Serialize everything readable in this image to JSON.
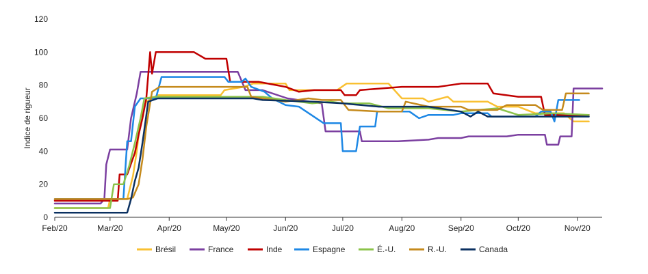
{
  "chart_data": {
    "type": "line",
    "ylabel": "Indice de rigueur",
    "xlabel": "",
    "ylim": [
      0,
      120
    ],
    "yticks": [
      0,
      20,
      40,
      60,
      80,
      100,
      120
    ],
    "xlim": [
      "2020-02-01",
      "2020-11-14"
    ],
    "xticks": [
      {
        "date": "2020-02-01",
        "label": "Feb/20"
      },
      {
        "date": "2020-03-01",
        "label": "Mar/20"
      },
      {
        "date": "2020-04-01",
        "label": "Apr/20"
      },
      {
        "date": "2020-05-01",
        "label": "May/20"
      },
      {
        "date": "2020-06-01",
        "label": "Jun/20"
      },
      {
        "date": "2020-07-01",
        "label": "Jul/20"
      },
      {
        "date": "2020-08-01",
        "label": "Aug/20"
      },
      {
        "date": "2020-09-01",
        "label": "Sep/20"
      },
      {
        "date": "2020-10-01",
        "label": "Oct/20"
      },
      {
        "date": "2020-11-01",
        "label": "Nov/20"
      }
    ],
    "grid": false,
    "legend_position": "bottom",
    "series": [
      {
        "name": "Brésil",
        "color": "#F9C032",
        "points": [
          [
            "2020-02-01",
            5.6
          ],
          [
            "2020-02-29",
            5.6
          ],
          [
            "2020-03-01",
            11
          ],
          [
            "2020-03-10",
            11
          ],
          [
            "2020-03-13",
            25
          ],
          [
            "2020-03-15",
            40
          ],
          [
            "2020-03-17",
            60
          ],
          [
            "2020-03-20",
            70
          ],
          [
            "2020-03-26",
            74
          ],
          [
            "2020-04-10",
            74
          ],
          [
            "2020-04-28",
            74
          ],
          [
            "2020-04-30",
            77
          ],
          [
            "2020-05-10",
            79
          ],
          [
            "2020-05-15",
            81
          ],
          [
            "2020-06-01",
            81
          ],
          [
            "2020-06-03",
            77
          ],
          [
            "2020-06-25",
            77
          ],
          [
            "2020-06-28",
            77
          ],
          [
            "2020-07-03",
            81
          ],
          [
            "2020-07-10",
            81
          ],
          [
            "2020-07-25",
            81
          ],
          [
            "2020-08-01",
            72
          ],
          [
            "2020-08-12",
            72
          ],
          [
            "2020-08-15",
            70
          ],
          [
            "2020-08-25",
            73
          ],
          [
            "2020-08-28",
            70
          ],
          [
            "2020-09-15",
            70
          ],
          [
            "2020-09-20",
            67
          ],
          [
            "2020-10-01",
            67
          ],
          [
            "2020-10-10",
            63
          ],
          [
            "2020-10-25",
            63
          ],
          [
            "2020-10-30",
            58
          ],
          [
            "2020-11-07",
            58
          ]
        ]
      },
      {
        "name": "France",
        "color": "#7B3FA0",
        "points": [
          [
            "2020-02-01",
            8.3
          ],
          [
            "2020-02-25",
            8.3
          ],
          [
            "2020-02-27",
            11
          ],
          [
            "2020-02-28",
            32
          ],
          [
            "2020-03-01",
            41
          ],
          [
            "2020-03-10",
            41
          ],
          [
            "2020-03-12",
            60
          ],
          [
            "2020-03-15",
            75
          ],
          [
            "2020-03-17",
            88
          ],
          [
            "2020-04-20",
            88
          ],
          [
            "2020-05-07",
            88
          ],
          [
            "2020-05-11",
            77
          ],
          [
            "2020-05-20",
            77
          ],
          [
            "2020-06-02",
            72
          ],
          [
            "2020-06-20",
            69
          ],
          [
            "2020-06-22",
            52
          ],
          [
            "2020-07-10",
            52
          ],
          [
            "2020-07-11",
            46
          ],
          [
            "2020-07-30",
            46
          ],
          [
            "2020-08-15",
            47
          ],
          [
            "2020-08-20",
            48
          ],
          [
            "2020-09-01",
            48
          ],
          [
            "2020-09-05",
            49
          ],
          [
            "2020-09-25",
            49
          ],
          [
            "2020-10-01",
            50
          ],
          [
            "2020-10-15",
            50
          ],
          [
            "2020-10-16",
            44
          ],
          [
            "2020-10-22",
            44
          ],
          [
            "2020-10-23",
            49
          ],
          [
            "2020-10-29",
            49
          ],
          [
            "2020-10-30",
            78
          ],
          [
            "2020-11-14",
            78
          ]
        ]
      },
      {
        "name": "Inde",
        "color": "#C00000",
        "points": [
          [
            "2020-02-01",
            10
          ],
          [
            "2020-02-28",
            10
          ],
          [
            "2020-03-05",
            10
          ],
          [
            "2020-03-06",
            26
          ],
          [
            "2020-03-10",
            26
          ],
          [
            "2020-03-14",
            39
          ],
          [
            "2020-03-16",
            50
          ],
          [
            "2020-03-18",
            60
          ],
          [
            "2020-03-20",
            72
          ],
          [
            "2020-03-22",
            100
          ],
          [
            "2020-03-23",
            87
          ],
          [
            "2020-03-25",
            100
          ],
          [
            "2020-04-14",
            100
          ],
          [
            "2020-04-20",
            96
          ],
          [
            "2020-05-01",
            96
          ],
          [
            "2020-05-03",
            82
          ],
          [
            "2020-05-18",
            82
          ],
          [
            "2020-06-01",
            79
          ],
          [
            "2020-06-08",
            76
          ],
          [
            "2020-06-16",
            77
          ],
          [
            "2020-06-30",
            77
          ],
          [
            "2020-07-02",
            74
          ],
          [
            "2020-07-08",
            74
          ],
          [
            "2020-07-10",
            77
          ],
          [
            "2020-08-01",
            79
          ],
          [
            "2020-08-20",
            79
          ],
          [
            "2020-09-01",
            81
          ],
          [
            "2020-09-15",
            81
          ],
          [
            "2020-09-18",
            75
          ],
          [
            "2020-10-01",
            73
          ],
          [
            "2020-10-13",
            73
          ],
          [
            "2020-10-15",
            62
          ],
          [
            "2020-11-07",
            62
          ]
        ]
      },
      {
        "name": "Espagne",
        "color": "#1E88E5",
        "points": [
          [
            "2020-02-01",
            11
          ],
          [
            "2020-03-08",
            11
          ],
          [
            "2020-03-10",
            46
          ],
          [
            "2020-03-12",
            46
          ],
          [
            "2020-03-14",
            67
          ],
          [
            "2020-03-17",
            72
          ],
          [
            "2020-03-25",
            72
          ],
          [
            "2020-03-28",
            85
          ],
          [
            "2020-04-10",
            85
          ],
          [
            "2020-04-30",
            85
          ],
          [
            "2020-05-02",
            82
          ],
          [
            "2020-05-09",
            82
          ],
          [
            "2020-05-11",
            84
          ],
          [
            "2020-05-14",
            79
          ],
          [
            "2020-05-21",
            76
          ],
          [
            "2020-05-25",
            72
          ],
          [
            "2020-06-01",
            68
          ],
          [
            "2020-06-08",
            67
          ],
          [
            "2020-06-21",
            57
          ],
          [
            "2020-06-30",
            57
          ],
          [
            "2020-07-01",
            40
          ],
          [
            "2020-07-08",
            40
          ],
          [
            "2020-07-10",
            55
          ],
          [
            "2020-07-18",
            55
          ],
          [
            "2020-07-19",
            64
          ],
          [
            "2020-08-05",
            64
          ],
          [
            "2020-08-10",
            60
          ],
          [
            "2020-08-15",
            62
          ],
          [
            "2020-08-28",
            62
          ],
          [
            "2020-09-01",
            63
          ],
          [
            "2020-09-15",
            63
          ],
          [
            "2020-09-17",
            61
          ],
          [
            "2020-10-10",
            61
          ],
          [
            "2020-10-13",
            64
          ],
          [
            "2020-10-18",
            64
          ],
          [
            "2020-10-20",
            58
          ],
          [
            "2020-10-22",
            71
          ],
          [
            "2020-11-02",
            71
          ]
        ]
      },
      {
        "name": "É.-U.",
        "color": "#8BC34A",
        "points": [
          [
            "2020-02-01",
            5.6
          ],
          [
            "2020-03-01",
            5.6
          ],
          [
            "2020-03-03",
            20
          ],
          [
            "2020-03-08",
            20
          ],
          [
            "2020-03-11",
            31
          ],
          [
            "2020-03-14",
            45
          ],
          [
            "2020-03-17",
            60
          ],
          [
            "2020-03-19",
            72
          ],
          [
            "2020-03-25",
            73
          ],
          [
            "2020-04-20",
            73
          ],
          [
            "2020-05-20",
            73
          ],
          [
            "2020-06-01",
            71
          ],
          [
            "2020-06-15",
            69
          ],
          [
            "2020-06-25",
            70
          ],
          [
            "2020-07-01",
            69
          ],
          [
            "2020-07-15",
            69
          ],
          [
            "2020-07-25",
            66
          ],
          [
            "2020-08-15",
            66
          ],
          [
            "2020-09-01",
            64
          ],
          [
            "2020-09-20",
            66
          ],
          [
            "2020-10-01",
            62
          ],
          [
            "2020-10-20",
            63
          ],
          [
            "2020-11-07",
            62
          ]
        ]
      },
      {
        "name": "R.-U.",
        "color": "#C58A1C",
        "points": [
          [
            "2020-02-01",
            11
          ],
          [
            "2020-03-10",
            11
          ],
          [
            "2020-03-13",
            12
          ],
          [
            "2020-03-16",
            20
          ],
          [
            "2020-03-18",
            35
          ],
          [
            "2020-03-20",
            55
          ],
          [
            "2020-03-23",
            76
          ],
          [
            "2020-03-27",
            79
          ],
          [
            "2020-04-20",
            79
          ],
          [
            "2020-05-12",
            79
          ],
          [
            "2020-05-14",
            73
          ],
          [
            "2020-06-01",
            70
          ],
          [
            "2020-06-13",
            72
          ],
          [
            "2020-06-20",
            71
          ],
          [
            "2020-06-30",
            71
          ],
          [
            "2020-07-04",
            65
          ],
          [
            "2020-07-20",
            64
          ],
          [
            "2020-08-01",
            64
          ],
          [
            "2020-08-03",
            70
          ],
          [
            "2020-08-15",
            67
          ],
          [
            "2020-09-01",
            67
          ],
          [
            "2020-09-05",
            65
          ],
          [
            "2020-09-20",
            65
          ],
          [
            "2020-09-25",
            68
          ],
          [
            "2020-10-10",
            68
          ],
          [
            "2020-10-14",
            65
          ],
          [
            "2020-10-24",
            65
          ],
          [
            "2020-10-26",
            75
          ],
          [
            "2020-11-07",
            75
          ]
        ]
      },
      {
        "name": "Canada",
        "color": "#0B3060",
        "points": [
          [
            "2020-02-01",
            2.8
          ],
          [
            "2020-03-10",
            2.8
          ],
          [
            "2020-03-12",
            11
          ],
          [
            "2020-03-14",
            22
          ],
          [
            "2020-03-16",
            30
          ],
          [
            "2020-03-18",
            45
          ],
          [
            "2020-03-21",
            70
          ],
          [
            "2020-03-26",
            72
          ],
          [
            "2020-04-10",
            72
          ],
          [
            "2020-05-15",
            72
          ],
          [
            "2020-05-20",
            71
          ],
          [
            "2020-06-15",
            70
          ],
          [
            "2020-07-01",
            69
          ],
          [
            "2020-07-20",
            67
          ],
          [
            "2020-08-15",
            67
          ],
          [
            "2020-09-01",
            64
          ],
          [
            "2020-09-06",
            61
          ],
          [
            "2020-09-10",
            64
          ],
          [
            "2020-09-15",
            61
          ],
          [
            "2020-10-15",
            61
          ],
          [
            "2020-11-07",
            61
          ]
        ]
      }
    ]
  }
}
